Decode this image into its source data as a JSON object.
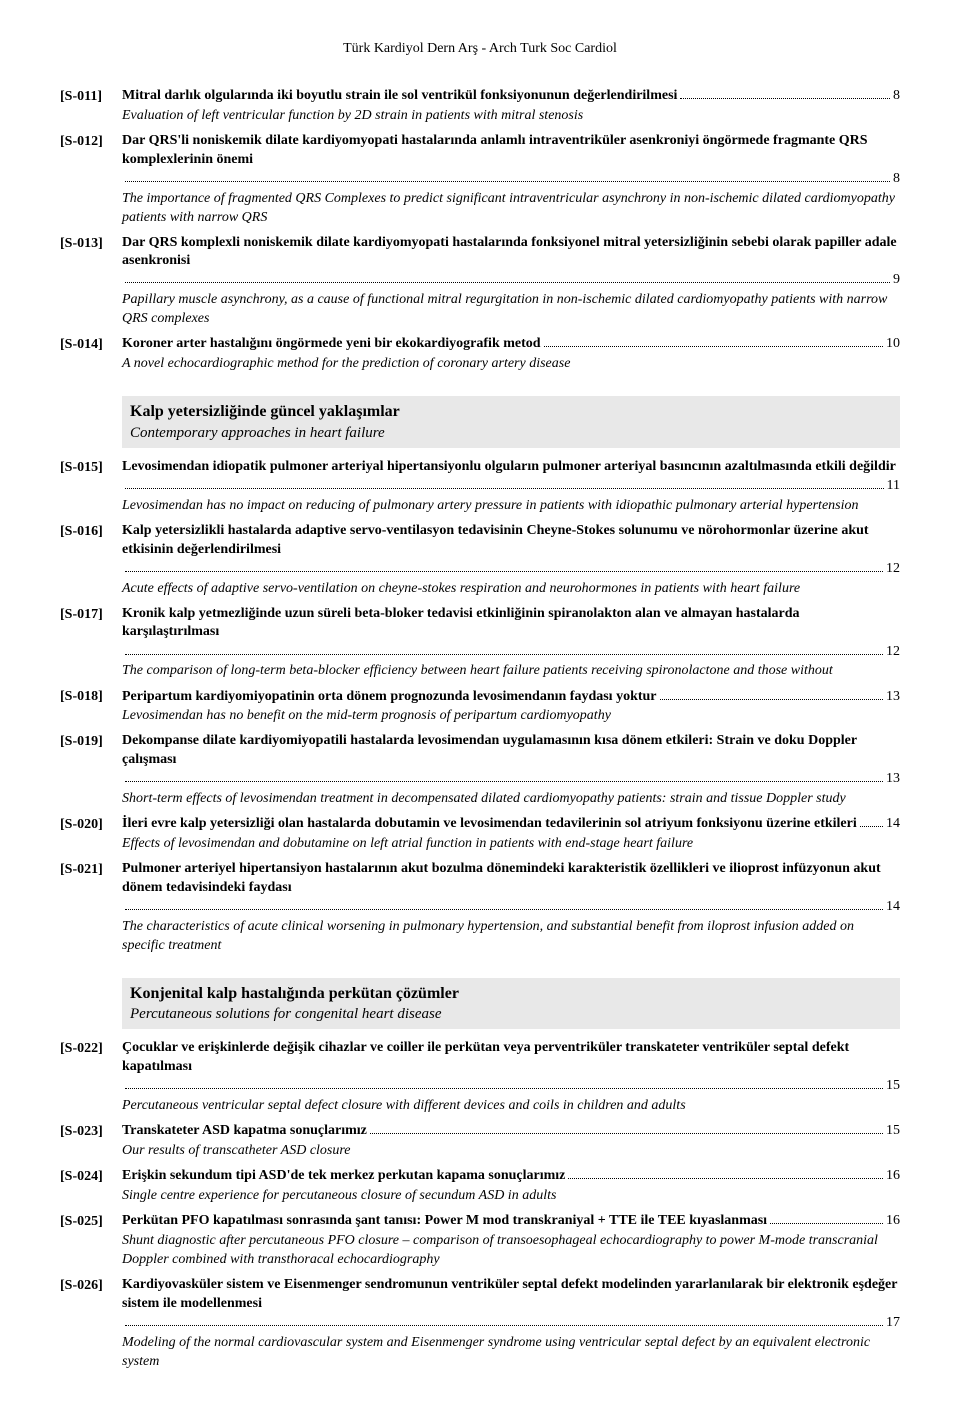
{
  "header": "Türk Kardiyol Dern Arş - Arch Turk Soc Cardiol",
  "entries_a": [
    {
      "code": "[S-011]",
      "title": "Mitral darlık olgularında iki boyutlu strain ile sol ventrikül fonksiyonunun değerlendirilmesi",
      "page": "8",
      "sub": "Evaluation of left ventricular function by 2D strain in patients with mitral stenosis"
    },
    {
      "code": "[S-012]",
      "title": "Dar QRS'li noniskemik dilate kardiyomyopati hastalarında anlamlı intraventriküler asenkroniyi öngörmede fragmante QRS komplexlerinin önemi",
      "page": "8",
      "sub": "The importance of fragmented QRS Complexes to predict significant intraventricular asynchrony in non-ischemic dilated cardiomyopathy patients with narrow QRS"
    },
    {
      "code": "[S-013]",
      "title": "Dar QRS komplexli noniskemik dilate kardiyomyopati hastalarında fonksiyonel mitral yetersizliğinin sebebi olarak papiller adale asenkronisi",
      "page": "9",
      "sub": "Papillary muscle asynchrony, as a cause of functional mitral regurgitation in non-ischemic dilated cardiomyopathy patients with narrow QRS complexes"
    },
    {
      "code": "[S-014]",
      "title": "Koroner arter hastalığını öngörmede yeni bir ekokardiyografik metod",
      "page": "10",
      "sub": "A novel echocardiographic method for the prediction of coronary artery disease"
    }
  ],
  "section_b": {
    "heading": "Kalp yetersizliğinde güncel yaklaşımlar",
    "sub": "Contemporary approaches in heart failure"
  },
  "entries_b": [
    {
      "code": "[S-015]",
      "title": "Levosimendan idiopatik pulmoner arteriyal hipertansiyonlu olguların pulmoner arteriyal basıncının azaltılmasında etkili değildir",
      "page": "11",
      "sub": "Levosimendan has no impact on reducing of pulmonary artery pressure in patients with idiopathic pulmonary arterial hypertension"
    },
    {
      "code": "[S-016]",
      "title": "Kalp yetersizlikli hastalarda adaptive servo-ventilasyon tedavisinin Cheyne-Stokes solunumu ve nörohormonlar üzerine akut etkisinin değerlendirilmesi",
      "page": "12",
      "sub": "Acute effects of adaptive servo-ventilation on cheyne-stokes respiration and neurohormones in patients with heart failure"
    },
    {
      "code": "[S-017]",
      "title": "Kronik kalp yetmezliğinde uzun süreli beta-bloker tedavisi etkinliğinin spiranolakton alan ve almayan hastalarda karşılaştırılması",
      "page": "12",
      "sub": "The comparison of long-term beta-blocker efficiency between heart failure patients receiving spironolactone and those without"
    },
    {
      "code": "[S-018]",
      "title": "Peripartum kardiyomiyopatinin orta dönem prognozunda levosimendanın faydası yoktur",
      "page": "13",
      "sub": "Levosimendan has no benefit on the mid-term prognosis of peripartum cardiomyopathy"
    },
    {
      "code": "[S-019]",
      "title": "Dekompanse dilate kardiyomiyopatili hastalarda levosimendan uygulamasının kısa dönem etkileri: Strain ve doku Doppler çalışması",
      "page": "13",
      "sub": "Short-term effects of levosimendan treatment in decompensated dilated cardiomyopathy patients: strain and tissue Doppler study"
    },
    {
      "code": "[S-020]",
      "title": "İleri evre kalp yetersizliği olan hastalarda dobutamin ve levosimendan tedavilerinin sol atriyum fonksiyonu üzerine etkileri",
      "page": "14",
      "sub": "Effects of levosimendan and dobutamine on left atrial function in patients with end-stage heart failure"
    },
    {
      "code": "[S-021]",
      "title": "Pulmoner arteriyel hipertansiyon hastalarının akut bozulma dönemindeki karakteristik özellikleri ve ilioprost infüzyonun akut dönem tedavisindeki faydası",
      "page": "14",
      "sub": "The characteristics of acute clinical worsening in pulmonary hypertension, and substantial benefit from iloprost infusion added on specific treatment"
    }
  ],
  "section_c": {
    "heading": "Konjenital kalp hastalığında perkütan çözümler",
    "sub": "Percutaneous solutions for congenital heart disease"
  },
  "entries_c": [
    {
      "code": "[S-022]",
      "title": "Çocuklar ve erişkinlerde değişik cihazlar ve coiller ile perkütan veya perventriküler transkateter ventriküler septal defekt kapatılması",
      "page": "15",
      "sub": "Percutaneous ventricular septal defect closure with different devices and coils in children and adults"
    },
    {
      "code": "[S-023]",
      "title": "Transkateter ASD kapatma sonuçlarımız",
      "page": "15",
      "sub": "Our results of transcatheter ASD closure"
    },
    {
      "code": "[S-024]",
      "title": "Erişkin sekundum tipi ASD'de tek merkez perkutan kapama sonuçlarımız",
      "page": "16",
      "sub": "Single centre experience for percutaneous closure of secundum ASD in adults"
    },
    {
      "code": "[S-025]",
      "title": "Perkütan PFO kapatılması sonrasında şant tanısı: Power M mod transkraniyal + TTE ile TEE kıyaslanması",
      "page": "16",
      "sub": "Shunt diagnostic after percutaneous PFO closure – comparison of transoesophageal echocardiography to power M-mode transcranial Doppler combined with transthoracal echocardiography"
    },
    {
      "code": "[S-026]",
      "title": "Kardiyovasküler sistem ve Eisenmenger sendromunun ventriküler septal defekt modelinden yararlanılarak bir elektronik eşdeğer sistem ile modellenmesi",
      "page": "17",
      "sub": "Modeling of the normal cardiovascular system and Eisenmenger syndrome using ventricular septal defect by an equivalent electronic system"
    }
  ]
}
